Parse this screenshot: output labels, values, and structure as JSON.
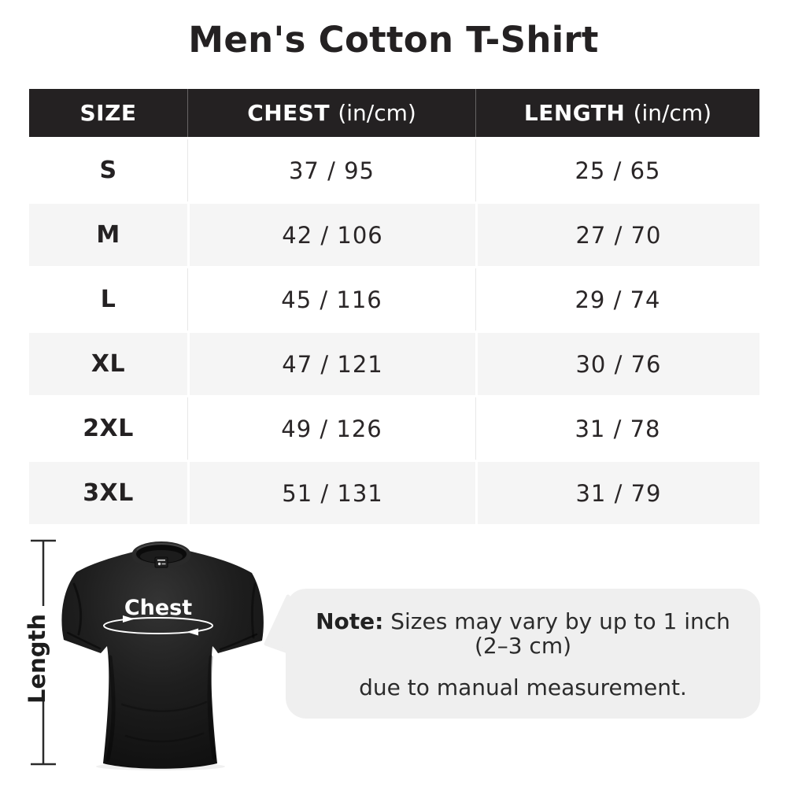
{
  "page": {
    "title": "Men's Cotton T-Shirt",
    "background_color": "#ffffff",
    "text_color": "#231f20"
  },
  "table": {
    "header_bg_color": "#242122",
    "header_text_color": "#ffffff",
    "row_alt_bg_color": "#f5f5f5",
    "row_bg_color": "#ffffff",
    "columns": [
      {
        "label": "SIZE",
        "unit": ""
      },
      {
        "label": "CHEST",
        "unit": "(in/cm)"
      },
      {
        "label": "LENGTH",
        "unit": "(in/cm)"
      }
    ],
    "rows": [
      {
        "size": "S",
        "chest": "37 / 95",
        "length": "25 / 65"
      },
      {
        "size": "M",
        "chest": "42 / 106",
        "length": "27 / 70"
      },
      {
        "size": "L",
        "chest": "45 / 116",
        "length": "29 / 74"
      },
      {
        "size": "XL",
        "chest": "47 / 121",
        "length": "30 / 76"
      },
      {
        "size": "2XL",
        "chest": "49 / 126",
        "length": "31 / 78"
      },
      {
        "size": "3XL",
        "chest": "51 / 131",
        "length": "31 / 79"
      }
    ]
  },
  "diagram": {
    "chest_label": "Chest",
    "length_label": "Length",
    "shirt_color": "#1a1a1a",
    "measure_line_color": "#2b2b2b",
    "chest_arrow_color": "#ffffff"
  },
  "note": {
    "label": "Note:",
    "line1": "Sizes may vary by up to 1 inch (2–3 cm)",
    "line2": "due to manual measurement.",
    "bubble_bg_color": "#efefef"
  }
}
